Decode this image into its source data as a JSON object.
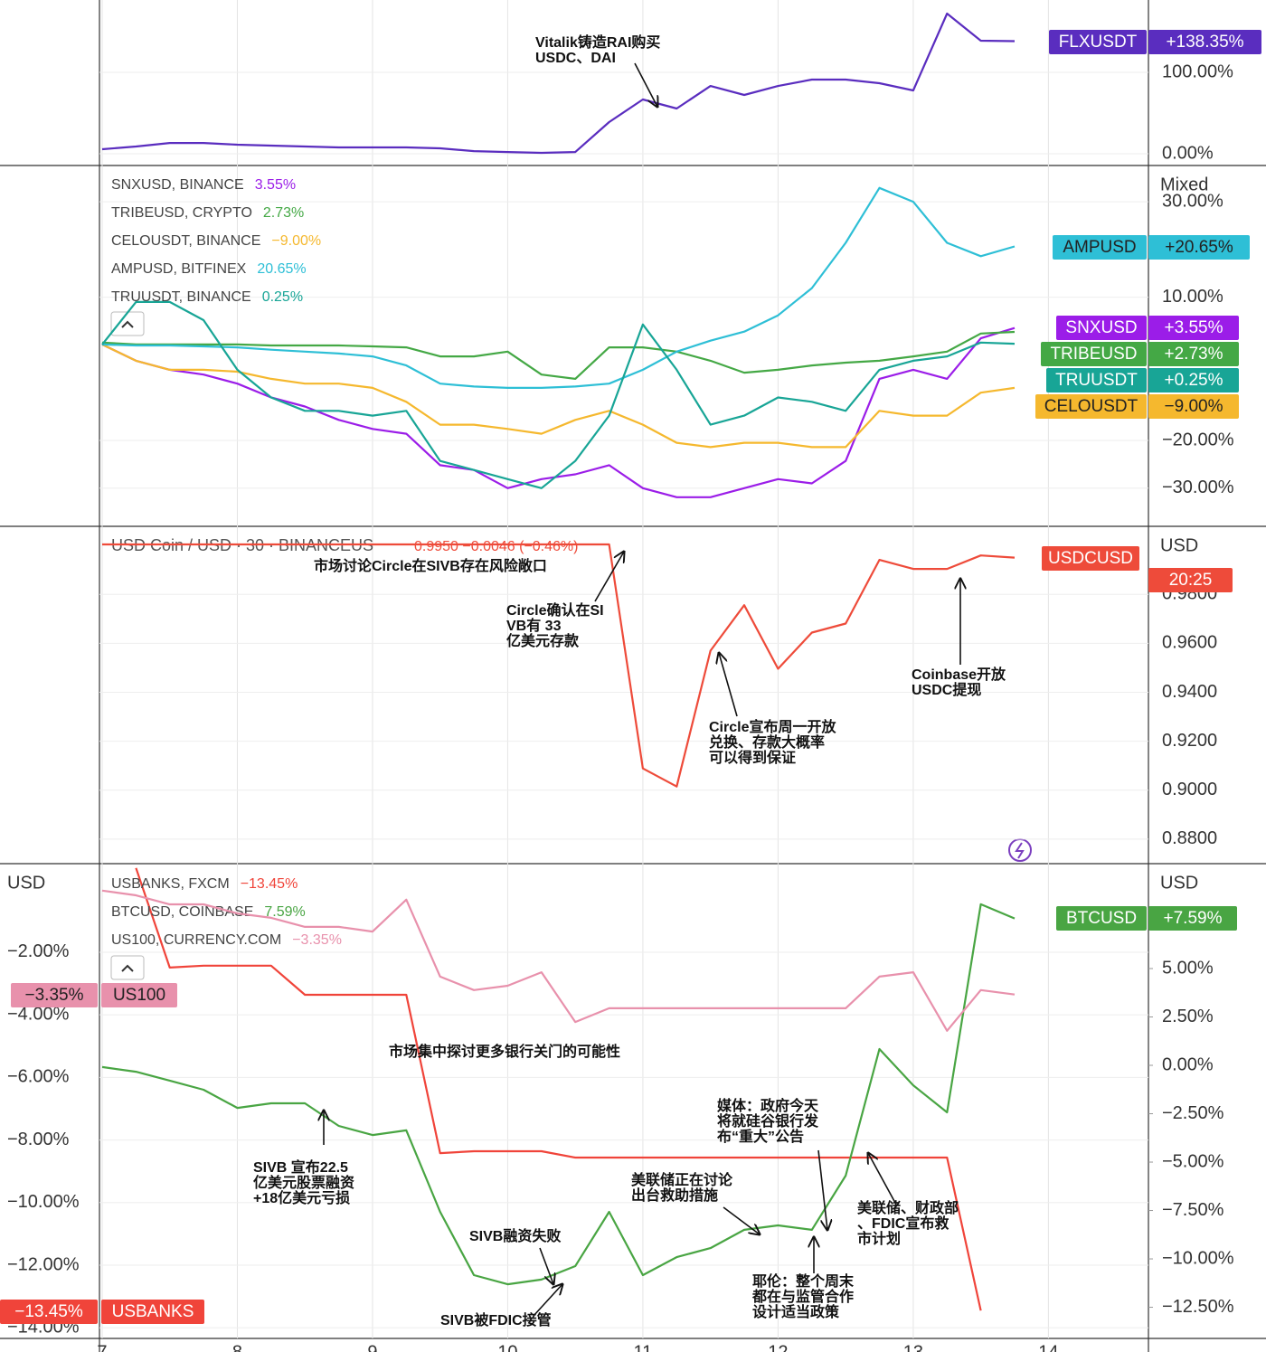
{
  "chart_data": [
    {
      "type": "line",
      "x": [
        7,
        7.25,
        7.5,
        7.75,
        8,
        8.25,
        8.5,
        8.75,
        9,
        9.25,
        9.5,
        9.75,
        10,
        10.25,
        10.5,
        10.75,
        11,
        11.25,
        11.5,
        11.75,
        12,
        12.25,
        12.5,
        12.75,
        13,
        13.25,
        13.5,
        13.75
      ],
      "xlim": [
        6.98,
        14.74
      ],
      "ylim": [
        -14.4,
        188.9
      ],
      "yticks": [
        {
          "value": 100,
          "label": "100.00%"
        },
        {
          "value": 0,
          "label": "0.00%"
        }
      ],
      "grid": true,
      "series": [
        {
          "name": "FLXUSDT",
          "color": "#5a2dbf",
          "value_label": "+138.35%",
          "values": [
            5.6,
            8.9,
            13.3,
            13.3,
            11.1,
            10,
            8.9,
            7.8,
            7.8,
            7.8,
            6.7,
            3.3,
            2.2,
            1.1,
            2.2,
            38.9,
            66.7,
            55.6,
            83.3,
            72.2,
            83.3,
            91.1,
            91.1,
            86.7,
            77.8,
            172.2,
            138.9,
            138.35
          ]
        }
      ],
      "annotations": [
        [
          "Vitalik铸造RAI购买",
          "USDC、DAI"
        ]
      ]
    },
    {
      "type": "line",
      "x": [
        7,
        7.25,
        7.5,
        7.75,
        8,
        8.25,
        8.5,
        8.75,
        9,
        9.25,
        9.5,
        9.75,
        10,
        10.25,
        10.5,
        10.75,
        11,
        11.25,
        11.5,
        11.75,
        12,
        12.25,
        12.5,
        12.75,
        13,
        13.25,
        13.5,
        13.75
      ],
      "xlim": [
        6.98,
        14.74
      ],
      "ylim": [
        -38,
        37.6
      ],
      "y_axis_label": "Mixed",
      "yticks": [
        {
          "value": 30,
          "label": "30.00%"
        },
        {
          "value": 10,
          "label": "10.00%"
        },
        {
          "value": -20,
          "label": "−20.00%"
        },
        {
          "value": -30,
          "label": "−30.00%"
        }
      ],
      "grid": true,
      "series": [
        {
          "name": "SNXUSD",
          "legend": "SNXUSD, BINANCE",
          "legend_value": "3.55%",
          "value_label": "+3.55%",
          "color": "#9b1de8",
          "values": [
            0.1,
            -3.3,
            -5.2,
            -6.2,
            -8.1,
            -11.0,
            -12.9,
            -15.7,
            -17.6,
            -18.6,
            -25.2,
            -26.2,
            -30.0,
            -28.1,
            -27.1,
            -25.2,
            -30.0,
            -31.9,
            -31.9,
            -30.0,
            -28.1,
            -29.0,
            -24.3,
            -7.1,
            -5.2,
            -7.1,
            1.4,
            3.55
          ]
        },
        {
          "name": "TRIBEUSD",
          "legend": "TRIBEUSD, CRYPTO",
          "legend_value": "2.73%",
          "value_label": "+2.73%",
          "color": "#44a845",
          "values": [
            0.5,
            0.1,
            0.1,
            0.1,
            0.1,
            -0.1,
            -0.1,
            -0.1,
            -0.3,
            -0.5,
            -2.4,
            -2.4,
            -1.4,
            -6.2,
            -7.1,
            -0.5,
            -0.5,
            -1.4,
            -3.3,
            -5.8,
            -5.2,
            -4.3,
            -3.7,
            -3.3,
            -2.4,
            -1.4,
            2.4,
            2.73
          ]
        },
        {
          "name": "CELOUSDT",
          "legend": "CELOUSDT, BINANCE",
          "legend_value": "−9.00%",
          "value_label": "−9.00%",
          "color": "#f5b82e",
          "values": [
            0.1,
            -3.3,
            -5.2,
            -5.2,
            -5.6,
            -7.1,
            -8.1,
            -8.1,
            -9.0,
            -11.9,
            -16.7,
            -16.7,
            -17.6,
            -18.6,
            -15.7,
            -13.8,
            -16.7,
            -20.5,
            -21.4,
            -20.5,
            -20.5,
            -21.4,
            -21.4,
            -13.8,
            -14.8,
            -14.8,
            -10.0,
            -9.0
          ]
        },
        {
          "name": "AMPUSD",
          "legend": "AMPUSD, BITFINEX",
          "legend_value": "20.65%",
          "value_label": "+20.65%",
          "color": "#2ebfd6",
          "values": [
            0.1,
            -0.1,
            -0.1,
            -0.3,
            -0.5,
            -1.0,
            -1.4,
            -1.8,
            -2.4,
            -4.3,
            -8.1,
            -8.7,
            -9.0,
            -9.0,
            -8.7,
            -8.1,
            -5.2,
            -1.4,
            0.9,
            2.8,
            6.2,
            11.9,
            21.4,
            32.9,
            30.0,
            21.4,
            18.6,
            20.65
          ]
        },
        {
          "name": "TRUUSDT",
          "legend": "TRUUSDT, BINANCE",
          "legend_value": "0.25%",
          "value_label": "+0.25%",
          "color": "#18a596",
          "values": [
            0.1,
            9.0,
            9.0,
            5.2,
            -5.2,
            -11.0,
            -13.8,
            -13.8,
            -14.8,
            -13.8,
            -24.3,
            -26.2,
            -28.1,
            -30.0,
            -24.3,
            -14.8,
            4.3,
            -5.2,
            -16.7,
            -14.8,
            -11.0,
            -11.9,
            -13.8,
            -5.2,
            -3.3,
            -2.4,
            0.5,
            0.25
          ]
        }
      ]
    },
    {
      "type": "line",
      "title": "USD Coin / USD · 30 · BINANCEUS",
      "subtitle": "0.9950 −0.0046 (−0.46%)",
      "x": [
        7,
        7.25,
        7.5,
        7.75,
        8,
        8.25,
        8.5,
        8.75,
        9,
        9.25,
        9.5,
        9.75,
        10,
        10.25,
        10.5,
        10.75,
        11,
        11.25,
        11.5,
        11.75,
        12,
        12.25,
        12.5,
        12.75,
        13,
        13.25,
        13.5,
        13.75
      ],
      "xlim": [
        6.98,
        14.74
      ],
      "ylim": [
        0.87,
        1.0078
      ],
      "y_axis_label": "USD",
      "yticks": [
        {
          "value": 0.98,
          "label": "0.9800"
        },
        {
          "value": 0.96,
          "label": "0.9600"
        },
        {
          "value": 0.94,
          "label": "0.9400"
        },
        {
          "value": 0.92,
          "label": "0.9200"
        },
        {
          "value": 0.9,
          "label": "0.9000"
        },
        {
          "value": 0.88,
          "label": "0.8800"
        }
      ],
      "grid": true,
      "series": [
        {
          "name": "USDCUSD",
          "value_label": "20:25",
          "color": "#ee4b3a",
          "values": [
            1.0004,
            1.0004,
            1.0004,
            1.0004,
            1.0004,
            1.0004,
            1.0004,
            1.0004,
            1.0004,
            1.0004,
            1.0004,
            1.0004,
            1.0004,
            1.0004,
            1.0004,
            1.0004,
            0.9089,
            0.9015,
            0.957,
            0.9756,
            0.9496,
            0.9644,
            0.9681,
            0.9941,
            0.9904,
            0.9904,
            0.9959,
            0.995
          ]
        }
      ],
      "annotations": [
        [
          "市场讨论Circle在SIVB存在风险敞口"
        ],
        [
          "Circle确认在SI",
          "VB有 33",
          "亿美元存款"
        ],
        [
          "Circle宣布周一开放",
          "兑换、存款大概率",
          "可以得到保证"
        ],
        [
          "Coinbase开放",
          "USDC提现"
        ]
      ]
    },
    {
      "type": "line",
      "x": [
        7,
        7.25,
        7.5,
        7.75,
        8,
        8.25,
        8.5,
        8.75,
        9,
        9.25,
        9.5,
        9.75,
        10,
        10.25,
        10.5,
        10.75,
        11,
        11.25,
        11.5,
        11.75,
        12,
        12.25,
        12.5,
        12.75,
        13,
        13.25,
        13.5,
        13.75
      ],
      "xlim": [
        6.98,
        14.74
      ],
      "xticks": [
        7,
        8,
        9,
        10,
        11,
        12,
        13,
        14
      ],
      "y_axis_label": "USD",
      "y2_axis_label": "USD",
      "ylim": [
        -14.34,
        0.83
      ],
      "yticks": [
        {
          "value": -2,
          "label": "−2.00%"
        },
        {
          "value": -4,
          "label": "−4.00%"
        },
        {
          "value": -6,
          "label": "−6.00%"
        },
        {
          "value": -8,
          "label": "−8.00%"
        },
        {
          "value": -10,
          "label": "−10.00%"
        },
        {
          "value": -12,
          "label": "−12.00%"
        },
        {
          "value": -14,
          "label": "−14.00%"
        }
      ],
      "y2lim": [
        -14.11,
        10.42
      ],
      "y2ticks": [
        {
          "value": 5,
          "label": "5.00%"
        },
        {
          "value": 2.5,
          "label": "2.50%"
        },
        {
          "value": 0,
          "label": "0.00%"
        },
        {
          "value": -2.5,
          "label": "−2.50%"
        },
        {
          "value": -5,
          "label": "−5.00%"
        },
        {
          "value": -7.5,
          "label": "−7.50%"
        },
        {
          "value": -10,
          "label": "−10.00%"
        },
        {
          "value": -12.5,
          "label": "−12.50%"
        }
      ],
      "grid": true,
      "series": [
        {
          "name": "USBANKS",
          "legend": "USBANKS, FXCM",
          "legend_value": "−13.45%",
          "value_label": "−13.45%",
          "color": "#f0443a",
          "values": [
            null,
            0.69,
            -2.49,
            -2.43,
            -2.43,
            -2.43,
            -3.36,
            -3.36,
            -3.36,
            -3.36,
            -8.42,
            -8.36,
            -8.36,
            -8.36,
            -8.56,
            -8.56,
            -8.56,
            -8.56,
            -8.56,
            -8.56,
            -8.56,
            -8.56,
            -8.56,
            -8.56,
            -8.56,
            -8.56,
            -13.45,
            null
          ]
        },
        {
          "name": "BTCUSD",
          "legend": "BTCUSD, COINBASE",
          "legend_value": "7.59%",
          "value_label": "+7.59%",
          "color": "#49a543",
          "axis": "y2",
          "values": [
            -0.09,
            -0.33,
            -0.79,
            -1.26,
            -2.2,
            -1.96,
            -1.96,
            -3.13,
            -3.6,
            -3.36,
            -7.57,
            -10.84,
            -11.31,
            -11.07,
            -10.37,
            -7.57,
            -10.84,
            -9.91,
            -9.44,
            -8.5,
            -8.27,
            -8.5,
            -5.7,
            0.84,
            -1.03,
            -2.43,
            8.32,
            7.59
          ]
        },
        {
          "name": "US100",
          "legend": "US100, CURRENCY.COM",
          "legend_value": "−3.35%",
          "value_label": "−3.35%",
          "color": "#e891ac",
          "values": [
            -0.03,
            -0.18,
            -0.47,
            -0.47,
            -0.76,
            -0.9,
            -1.19,
            -1.19,
            -1.34,
            -0.32,
            -2.78,
            -3.21,
            -3.07,
            -2.64,
            -4.23,
            -3.79,
            -3.79,
            -3.79,
            -3.79,
            -3.79,
            -3.79,
            -3.79,
            -3.79,
            -2.78,
            -2.64,
            -4.51,
            -3.21,
            -3.35
          ]
        }
      ],
      "annotations": [
        [
          "市场集中探讨更多银行关门的可能性"
        ],
        [
          "SIVB 宣布22.5",
          "亿美元股票融资",
          "+18亿美元亏损"
        ],
        [
          "SIVB融资失败"
        ],
        [
          "SIVB被FDIC接管"
        ],
        [
          "美联储正在讨论",
          "出台救助措施"
        ],
        [
          "媒体：政府今天",
          "将就硅谷银行发",
          "布“重大”公告"
        ],
        [
          "耶伦：整个周末",
          "都在与监管合作",
          "设计适当政策"
        ],
        [
          "美联储、财政部",
          "、FDIC宣布救",
          "市计划"
        ]
      ]
    }
  ]
}
